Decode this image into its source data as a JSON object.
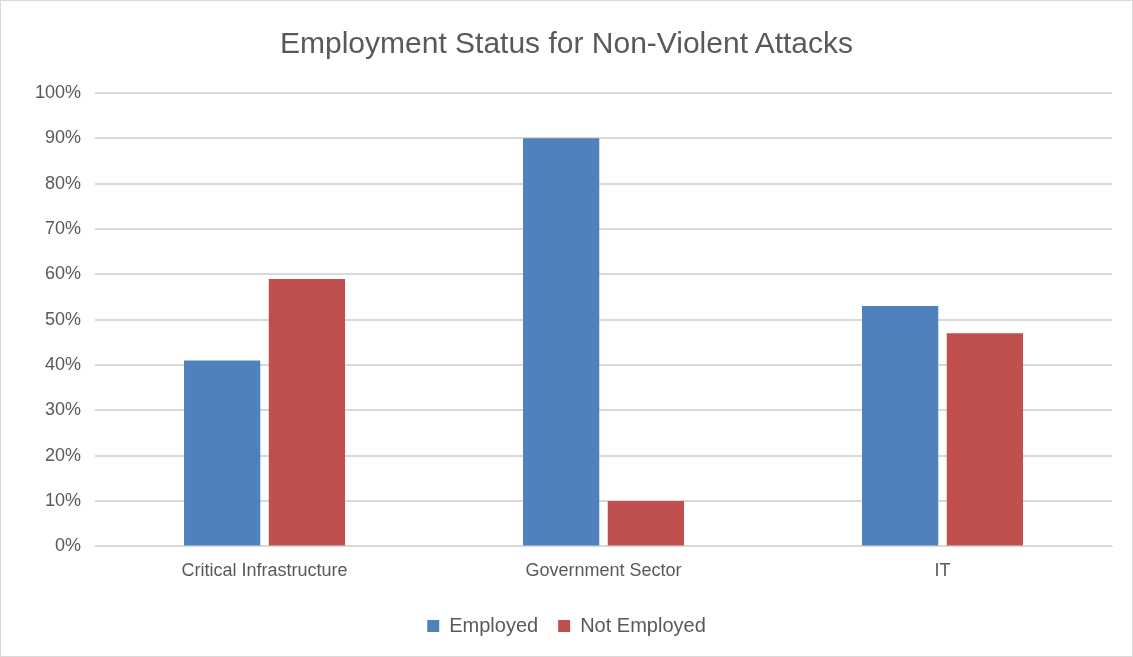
{
  "chart_data": {
    "type": "bar",
    "title": "Employment Status for Non-Violent Attacks",
    "categories": [
      "Critical Infrastructure",
      "Government Sector",
      "IT"
    ],
    "series": [
      {
        "name": "Employed",
        "color": "#4f81bd",
        "values": [
          41,
          90,
          53
        ]
      },
      {
        "name": "Not Employed",
        "color": "#c0504d",
        "values": [
          59,
          10,
          47
        ]
      }
    ],
    "ylim": [
      0,
      100
    ],
    "yticks": [
      {
        "value": 0,
        "label": "0%"
      },
      {
        "value": 10,
        "label": "10%"
      },
      {
        "value": 20,
        "label": "20%"
      },
      {
        "value": 30,
        "label": "30%"
      },
      {
        "value": 40,
        "label": "40%"
      },
      {
        "value": 50,
        "label": "50%"
      },
      {
        "value": 60,
        "label": "60%"
      },
      {
        "value": 70,
        "label": "70%"
      },
      {
        "value": 80,
        "label": "80%"
      },
      {
        "value": 90,
        "label": "90%"
      },
      {
        "value": 100,
        "label": "100%"
      }
    ],
    "grid": "y",
    "legend": "bottom"
  }
}
